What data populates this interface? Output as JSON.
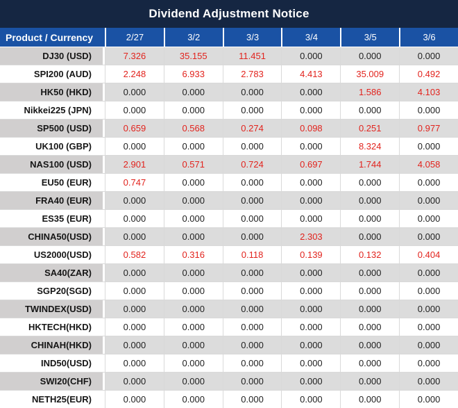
{
  "title": "Dividend Adjustment Notice",
  "colors": {
    "navy": "#152642",
    "header_blue": "#1a52a4",
    "stripe_gray": "#dcdcdc",
    "label_gray": "#d1cfcf",
    "grid_line": "#d9d9d9",
    "value_red": "#e2231d",
    "value_black": "#212121"
  },
  "table": {
    "product_header": "Product / Currency",
    "date_headers": [
      "2/27",
      "3/2",
      "3/3",
      "3/4",
      "3/5",
      "3/6"
    ],
    "zero_display": "0.000",
    "rows": [
      {
        "product": "DJ30 (USD)",
        "values": [
          "7.326",
          "35.155",
          "11.451",
          "0.000",
          "0.000",
          "0.000"
        ]
      },
      {
        "product": "SPI200 (AUD)",
        "values": [
          "2.248",
          "6.933",
          "2.783",
          "4.413",
          "35.009",
          "0.492"
        ]
      },
      {
        "product": "HK50 (HKD)",
        "values": [
          "0.000",
          "0.000",
          "0.000",
          "0.000",
          "1.586",
          "4.103"
        ]
      },
      {
        "product": "Nikkei225 (JPN)",
        "values": [
          "0.000",
          "0.000",
          "0.000",
          "0.000",
          "0.000",
          "0.000"
        ]
      },
      {
        "product": "SP500 (USD)",
        "values": [
          "0.659",
          "0.568",
          "0.274",
          "0.098",
          "0.251",
          "0.977"
        ]
      },
      {
        "product": "UK100 (GBP)",
        "values": [
          "0.000",
          "0.000",
          "0.000",
          "0.000",
          "8.324",
          "0.000"
        ]
      },
      {
        "product": "NAS100 (USD)",
        "values": [
          "2.901",
          "0.571",
          "0.724",
          "0.697",
          "1.744",
          "4.058"
        ]
      },
      {
        "product": "EU50 (EUR)",
        "values": [
          "0.747",
          "0.000",
          "0.000",
          "0.000",
          "0.000",
          "0.000"
        ]
      },
      {
        "product": "FRA40 (EUR)",
        "values": [
          "0.000",
          "0.000",
          "0.000",
          "0.000",
          "0.000",
          "0.000"
        ]
      },
      {
        "product": "ES35 (EUR)",
        "values": [
          "0.000",
          "0.000",
          "0.000",
          "0.000",
          "0.000",
          "0.000"
        ]
      },
      {
        "product": "CHINA50(USD)",
        "values": [
          "0.000",
          "0.000",
          "0.000",
          "2.303",
          "0.000",
          "0.000"
        ]
      },
      {
        "product": "US2000(USD)",
        "values": [
          "0.582",
          "0.316",
          "0.118",
          "0.139",
          "0.132",
          "0.404"
        ]
      },
      {
        "product": "SA40(ZAR)",
        "values": [
          "0.000",
          "0.000",
          "0.000",
          "0.000",
          "0.000",
          "0.000"
        ]
      },
      {
        "product": "SGP20(SGD)",
        "values": [
          "0.000",
          "0.000",
          "0.000",
          "0.000",
          "0.000",
          "0.000"
        ]
      },
      {
        "product": "TWINDEX(USD)",
        "values": [
          "0.000",
          "0.000",
          "0.000",
          "0.000",
          "0.000",
          "0.000"
        ]
      },
      {
        "product": "HKTECH(HKD)",
        "values": [
          "0.000",
          "0.000",
          "0.000",
          "0.000",
          "0.000",
          "0.000"
        ]
      },
      {
        "product": "CHINAH(HKD)",
        "values": [
          "0.000",
          "0.000",
          "0.000",
          "0.000",
          "0.000",
          "0.000"
        ]
      },
      {
        "product": "IND50(USD)",
        "values": [
          "0.000",
          "0.000",
          "0.000",
          "0.000",
          "0.000",
          "0.000"
        ]
      },
      {
        "product": "SWI20(CHF)",
        "values": [
          "0.000",
          "0.000",
          "0.000",
          "0.000",
          "0.000",
          "0.000"
        ]
      },
      {
        "product": "NETH25(EUR)",
        "values": [
          "0.000",
          "0.000",
          "0.000",
          "0.000",
          "0.000",
          "0.000"
        ]
      }
    ]
  }
}
